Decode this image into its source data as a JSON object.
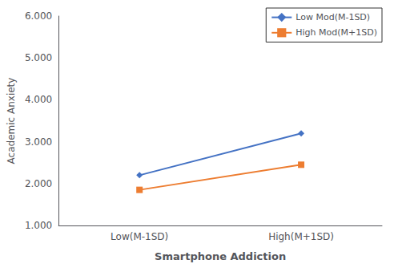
{
  "chart_data": {
    "type": "line",
    "categories": [
      "Low(M-1SD)",
      "High(M+1SD)"
    ],
    "series": [
      {
        "name": "Low Mod(M-1SD)",
        "color": "#4472C4",
        "marker": "diamond",
        "values": [
          2.2,
          3.2
        ]
      },
      {
        "name": "High Mod(M+1SD)",
        "color": "#ED7D31",
        "marker": "square",
        "values": [
          1.85,
          2.45
        ]
      }
    ],
    "xlabel": "Smartphone Addiction",
    "ylabel": "Academic Anxiety",
    "ylim": [
      1.0,
      6.0
    ],
    "yticks": [
      {
        "value": 1.0,
        "label": "1.000"
      },
      {
        "value": 2.0,
        "label": "2.000"
      },
      {
        "value": 3.0,
        "label": "3.000"
      },
      {
        "value": 4.0,
        "label": "4.000"
      },
      {
        "value": 5.0,
        "label": "5.000"
      },
      {
        "value": 6.0,
        "label": "6.000"
      }
    ],
    "grid": false,
    "legend": "upper right"
  }
}
